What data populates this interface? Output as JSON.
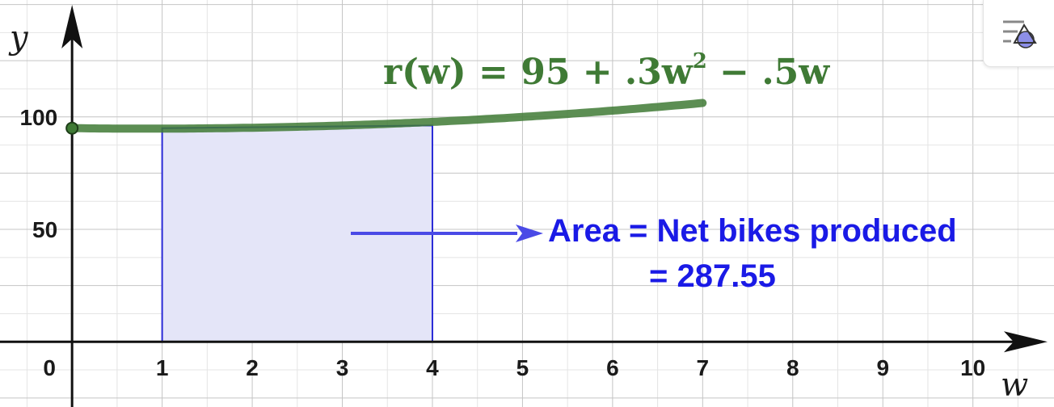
{
  "chart_data": {
    "type": "area",
    "function_label": "r(w) = 95 + .3w^2 − .5w",
    "function": {
      "name": "r",
      "variable": "w",
      "constant": 95,
      "quadratic_coeff": 0.3,
      "linear_coeff": -0.5
    },
    "curve_domain": [
      0,
      7
    ],
    "shaded_region": {
      "x_from": 1,
      "x_to": 4,
      "top_values": [
        95,
        96.2
      ],
      "note": "rectangle under curve"
    },
    "xlabel": "w",
    "ylabel": "y",
    "x_ticks": [
      "0",
      "1",
      "2",
      "3",
      "4",
      "5",
      "6",
      "7",
      "8",
      "9",
      "10"
    ],
    "y_ticks": [
      "50",
      "100"
    ],
    "xlim": [
      -0.8,
      10.9
    ],
    "ylim": [
      -29,
      152
    ],
    "grid": true,
    "annotation": {
      "line1": "Area = Net bikes produced",
      "line2": "= 287.55"
    },
    "colors": {
      "curve": "#3f7a35",
      "shade_fill": "#e4e5f8",
      "shade_edge": "#2a2ad6",
      "annotation": "#1a1ae6",
      "arrow": "#4a4ae6"
    }
  },
  "toolbar": {
    "style_button_icon": "graphics-style-icon"
  }
}
